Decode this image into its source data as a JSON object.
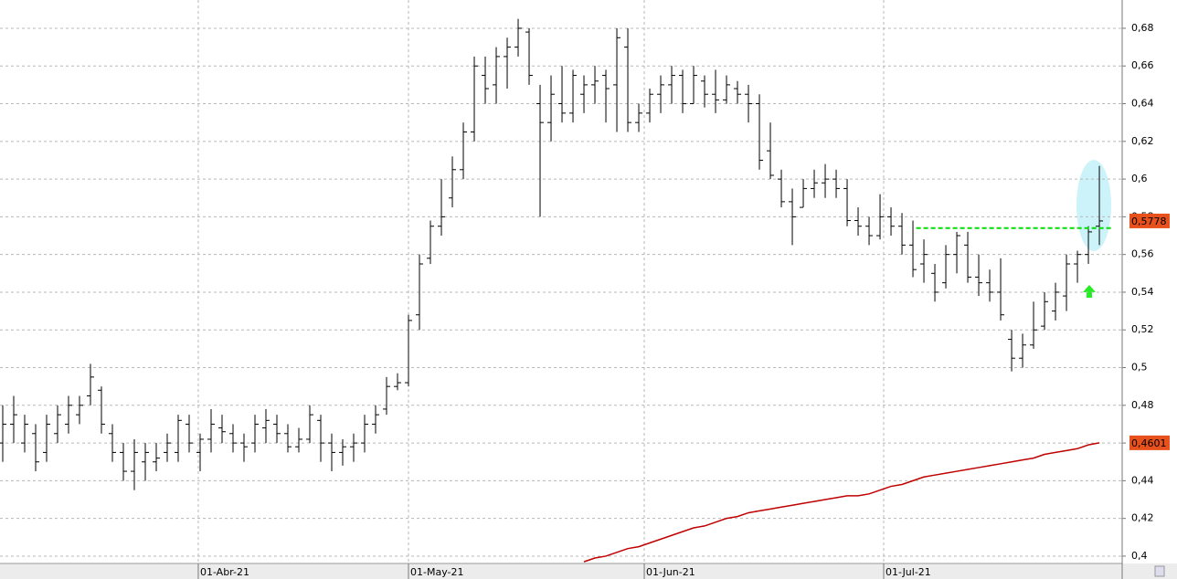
{
  "chart_data": {
    "type": "ohlc",
    "color": "#000000",
    "xlim": [
      -0.25,
      102.08
    ],
    "ylim": [
      0.3961,
      0.695
    ],
    "xticks": [
      {
        "value": 17.83,
        "label": "01-Abr-21"
      },
      {
        "value": 37,
        "label": "01-May-21"
      },
      {
        "value": 58.5,
        "label": "01-Jun-21"
      },
      {
        "value": 80.33,
        "label": "01-Jul-21"
      }
    ],
    "yticks": [
      {
        "value": 0.4,
        "label": "0,4"
      },
      {
        "value": 0.42,
        "label": "0,42"
      },
      {
        "value": 0.44,
        "label": "0,44"
      },
      {
        "value": 0.46,
        "label": "0,46"
      },
      {
        "value": 0.48,
        "label": "0,48"
      },
      {
        "value": 0.5,
        "label": "0,5"
      },
      {
        "value": 0.52,
        "label": "0,52"
      },
      {
        "value": 0.54,
        "label": "0,54"
      },
      {
        "value": 0.56,
        "label": "0,56"
      },
      {
        "value": 0.58,
        "label": "0,58"
      },
      {
        "value": 0.6,
        "label": "0,6"
      },
      {
        "value": 0.62,
        "label": "0,62"
      },
      {
        "value": 0.64,
        "label": "0,64"
      },
      {
        "value": 0.66,
        "label": "0,66"
      },
      {
        "value": 0.68,
        "label": "0,68"
      }
    ],
    "grid": true,
    "open": [
      0.46,
      0.47,
      0.46,
      0.465,
      0.455,
      0.465,
      0.47,
      0.475,
      0.485,
      0.488,
      0.465,
      0.455,
      0.445,
      0.45,
      0.45,
      0.455,
      0.455,
      0.47,
      0.455,
      0.462,
      0.468,
      0.465,
      0.46,
      0.46,
      0.468,
      0.47,
      0.465,
      0.458,
      0.462,
      0.472,
      0.46,
      0.455,
      0.458,
      0.46,
      0.47,
      0.478,
      0.49,
      0.492,
      0.528,
      0.558,
      0.575,
      0.59,
      0.605,
      0.625,
      0.655,
      0.65,
      0.665,
      0.67,
      0.678,
      0.64,
      0.63,
      0.64,
      0.635,
      0.645,
      0.65,
      0.655,
      0.65,
      0.67,
      0.63,
      0.635,
      0.645,
      0.65,
      0.655,
      0.64,
      0.652,
      0.645,
      0.642,
      0.648,
      0.645,
      0.64,
      0.615,
      0.6,
      0.588,
      0.585,
      0.595,
      0.598,
      0.6,
      0.595,
      0.578,
      0.575,
      0.57,
      0.58,
      0.575,
      0.565,
      0.555,
      0.55,
      0.545,
      0.56,
      0.565,
      0.548,
      0.545,
      0.54,
      0.515,
      0.505,
      0.512,
      0.522,
      0.53,
      0.538,
      0.555,
      0.56,
      0.575
    ],
    "high": [
      0.48,
      0.485,
      0.475,
      0.47,
      0.475,
      0.48,
      0.485,
      0.485,
      0.502,
      0.49,
      0.47,
      0.46,
      0.462,
      0.46,
      0.46,
      0.465,
      0.475,
      0.475,
      0.465,
      0.478,
      0.475,
      0.47,
      0.465,
      0.475,
      0.478,
      0.475,
      0.47,
      0.468,
      0.48,
      0.475,
      0.465,
      0.462,
      0.465,
      0.475,
      0.48,
      0.495,
      0.497,
      0.528,
      0.56,
      0.578,
      0.6,
      0.612,
      0.63,
      0.665,
      0.665,
      0.67,
      0.675,
      0.685,
      0.68,
      0.65,
      0.655,
      0.66,
      0.658,
      0.655,
      0.66,
      0.658,
      0.68,
      0.68,
      0.64,
      0.648,
      0.655,
      0.66,
      0.658,
      0.66,
      0.655,
      0.658,
      0.655,
      0.652,
      0.65,
      0.645,
      0.63,
      0.605,
      0.595,
      0.6,
      0.605,
      0.608,
      0.605,
      0.6,
      0.585,
      0.58,
      0.592,
      0.585,
      0.582,
      0.578,
      0.568,
      0.555,
      0.565,
      0.572,
      0.572,
      0.56,
      0.552,
      0.558,
      0.52,
      0.518,
      0.535,
      0.54,
      0.545,
      0.56,
      0.562,
      0.575,
      0.607
    ],
    "low": [
      0.45,
      0.46,
      0.455,
      0.445,
      0.45,
      0.46,
      0.465,
      0.47,
      0.48,
      0.465,
      0.45,
      0.44,
      0.435,
      0.44,
      0.445,
      0.45,
      0.45,
      0.455,
      0.445,
      0.455,
      0.46,
      0.455,
      0.45,
      0.455,
      0.46,
      0.46,
      0.455,
      0.455,
      0.46,
      0.45,
      0.445,
      0.448,
      0.45,
      0.455,
      0.465,
      0.475,
      0.488,
      0.49,
      0.52,
      0.555,
      0.57,
      0.585,
      0.6,
      0.62,
      0.64,
      0.64,
      0.648,
      0.665,
      0.65,
      0.58,
      0.62,
      0.63,
      0.63,
      0.635,
      0.64,
      0.63,
      0.625,
      0.625,
      0.625,
      0.63,
      0.635,
      0.64,
      0.635,
      0.64,
      0.638,
      0.635,
      0.64,
      0.64,
      0.63,
      0.605,
      0.6,
      0.585,
      0.565,
      0.585,
      0.59,
      0.59,
      0.59,
      0.575,
      0.57,
      0.565,
      0.568,
      0.57,
      0.56,
      0.548,
      0.545,
      0.535,
      0.542,
      0.55,
      0.545,
      0.538,
      0.535,
      0.525,
      0.498,
      0.5,
      0.51,
      0.52,
      0.525,
      0.53,
      0.545,
      0.555,
      0.565
    ],
    "close": [
      0.47,
      0.475,
      0.47,
      0.45,
      0.47,
      0.475,
      0.48,
      0.48,
      0.495,
      0.47,
      0.455,
      0.445,
      0.455,
      0.455,
      0.452,
      0.46,
      0.472,
      0.46,
      0.462,
      0.47,
      0.466,
      0.46,
      0.458,
      0.47,
      0.472,
      0.465,
      0.458,
      0.462,
      0.475,
      0.46,
      0.455,
      0.458,
      0.46,
      0.47,
      0.475,
      0.49,
      0.492,
      0.525,
      0.555,
      0.575,
      0.58,
      0.605,
      0.625,
      0.66,
      0.648,
      0.665,
      0.67,
      0.68,
      0.655,
      0.63,
      0.645,
      0.635,
      0.655,
      0.65,
      0.652,
      0.648,
      0.675,
      0.63,
      0.635,
      0.645,
      0.65,
      0.655,
      0.64,
      0.655,
      0.645,
      0.642,
      0.65,
      0.645,
      0.64,
      0.61,
      0.602,
      0.588,
      0.58,
      0.595,
      0.598,
      0.6,
      0.595,
      0.578,
      0.575,
      0.57,
      0.58,
      0.575,
      0.565,
      0.552,
      0.56,
      0.54,
      0.56,
      0.57,
      0.548,
      0.545,
      0.54,
      0.528,
      0.505,
      0.512,
      0.52,
      0.535,
      0.54,
      0.555,
      0.56,
      0.572,
      0.5778
    ],
    "ma": {
      "color": "#c00000",
      "values": [
        null,
        null,
        null,
        null,
        null,
        null,
        null,
        null,
        null,
        null,
        null,
        null,
        null,
        null,
        null,
        null,
        null,
        null,
        null,
        null,
        null,
        null,
        null,
        null,
        null,
        null,
        null,
        null,
        null,
        null,
        null,
        null,
        null,
        null,
        null,
        null,
        null,
        null,
        null,
        null,
        null,
        null,
        null,
        null,
        null,
        null,
        null,
        null,
        null,
        null,
        null,
        null,
        null,
        0.397,
        0.399,
        0.4,
        0.402,
        0.404,
        0.405,
        0.407,
        0.409,
        0.411,
        0.413,
        0.415,
        0.416,
        0.418,
        0.42,
        0.421,
        0.423,
        0.424,
        0.425,
        0.426,
        0.427,
        0.428,
        0.429,
        0.43,
        0.431,
        0.432,
        0.432,
        0.433,
        0.435,
        0.437,
        0.438,
        0.44,
        0.442,
        0.443,
        0.444,
        0.445,
        0.446,
        0.447,
        0.448,
        0.449,
        0.45,
        0.451,
        0.452,
        0.454,
        0.455,
        0.456,
        0.457,
        0.459,
        0.4601
      ]
    },
    "level": {
      "value": 0.574,
      "from": 83.3,
      "color": "#00e000"
    },
    "markers": [
      {
        "value": 0.5778,
        "label": "0,5778",
        "color": "#e8501c"
      },
      {
        "value": 0.4601,
        "label": "0,4601",
        "color": "#e8501c"
      }
    ]
  }
}
